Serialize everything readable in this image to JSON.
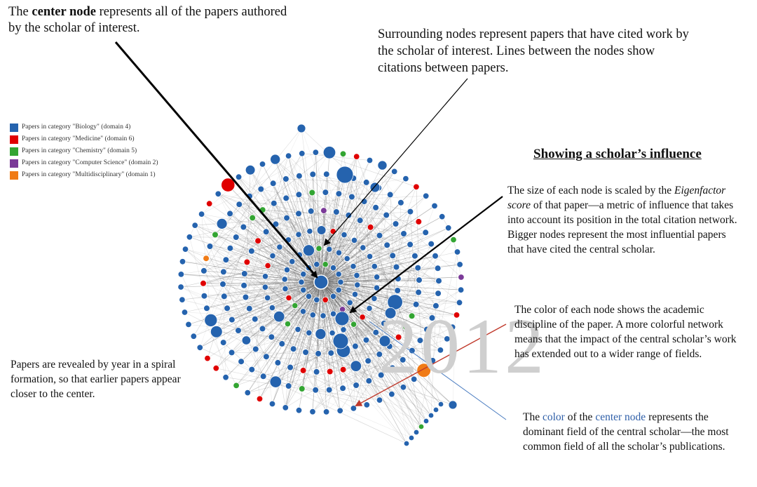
{
  "year_label": "2012",
  "legend": [
    {
      "label": "Papers in category \"Biology\" (domain 4)",
      "color": "#2563ae"
    },
    {
      "label": "Papers in category \"Medicine\" (domain 6)",
      "color": "#e00000"
    },
    {
      "label": "Papers in category \"Chemistry\" (domain 5)",
      "color": "#33a532"
    },
    {
      "label": "Papers in category \"Computer Science\" (domain 2)",
      "color": "#7b3a98"
    },
    {
      "label": "Papers in category \"Multidisciplinary\" (domain 1)",
      "color": "#f07b16"
    }
  ],
  "annotations": {
    "center_node": {
      "pre": "The ",
      "bold": "center node",
      "post": " represents all of the papers authored by the scholar of interest."
    },
    "surrounding": "Surrounding nodes represent papers that have cited work by the scholar of interest. Lines between the nodes show citations between papers.",
    "heading": "Showing a scholar’s influence",
    "size": {
      "pre": "The size of each node is scaled by the ",
      "italic": "Eigenfactor score",
      "post": " of that paper—a metric of influence that takes into account its position in the total citation network. Bigger nodes represent the most influential papers that have cited the central scholar."
    },
    "color_node": "The color of each node shows the academic discipline of the paper. A more colorful network means that the impact of the central scholar’s work has extended out to a wider range of fields.",
    "spiral": "Papers are revealed by year in a spiral formation, so that earlier papers appear closer to the center.",
    "center_color": {
      "p1": "The ",
      "c1": "color",
      "p2": " of the ",
      "c2": "center node",
      "p3": " represents the dominant field of the central scholar—the most common field of all the scholar’s publications."
    }
  },
  "colors": {
    "biology": "#2563ae",
    "medicine": "#e00000",
    "chemistry": "#33a532",
    "computer_science": "#7b3a98",
    "multidisciplinary": "#f07b16",
    "edge": "#555555",
    "arrow": "#000000",
    "red_arrow": "#c0392b",
    "blue_line": "#4a7cc0"
  }
}
